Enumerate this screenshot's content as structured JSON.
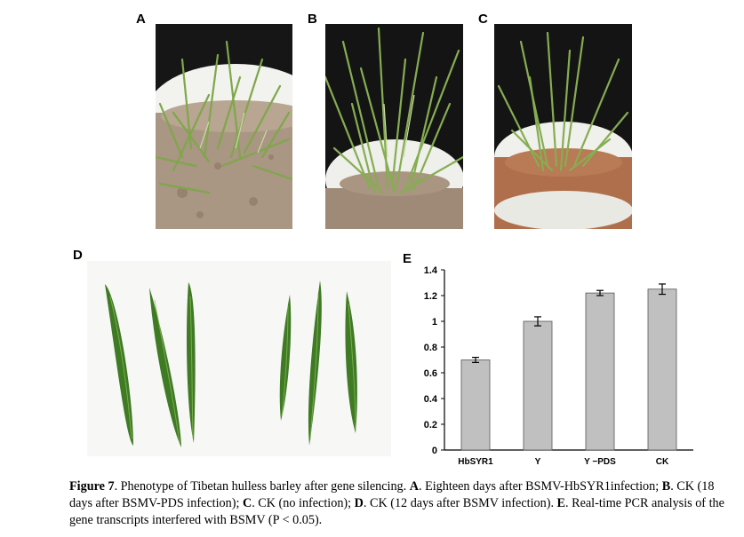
{
  "panels": {
    "a": "A",
    "b": "B",
    "c": "C",
    "d": "D",
    "e": "E"
  },
  "chart_data": {
    "type": "bar",
    "categories": [
      "HbSYR1",
      "γ",
      "γ-PDS",
      "CK"
    ],
    "category_labels": [
      "HbSYR1",
      "Y",
      "Y −PDS",
      "CK"
    ],
    "values": [
      0.7,
      1.0,
      1.22,
      1.25
    ],
    "errors": [
      0.02,
      0.035,
      0.02,
      0.04
    ],
    "ylim": [
      0,
      1.4
    ],
    "yticks": [
      "0",
      "0.2",
      "0.4",
      "0.6",
      "0.8",
      "1",
      "1.2",
      "1.4"
    ],
    "bar_color": "#c0c0c0",
    "title": "",
    "xlabel": "",
    "ylabel": ""
  },
  "caption": {
    "fig_label": "Figure 7",
    "fig_title": ". Phenotype of Tibetan hulless barley after gene silencing. ",
    "a_label": "A",
    "a_text": ". Eighteen days after BSMV-HbSYR1infection; ",
    "b_label": "B",
    "b_text": ". CK (18 days after BSMV-PDS infection); ",
    "c_label": "C",
    "c_text": ". CK (no infection); ",
    "d_label": "D",
    "d_text": ". CK (12 days after BSMV infection). ",
    "e_label": "E",
    "e_text": ". Real-time PCR analysis of the gene transcripts interfered with BSMV (P < 0.05)."
  }
}
